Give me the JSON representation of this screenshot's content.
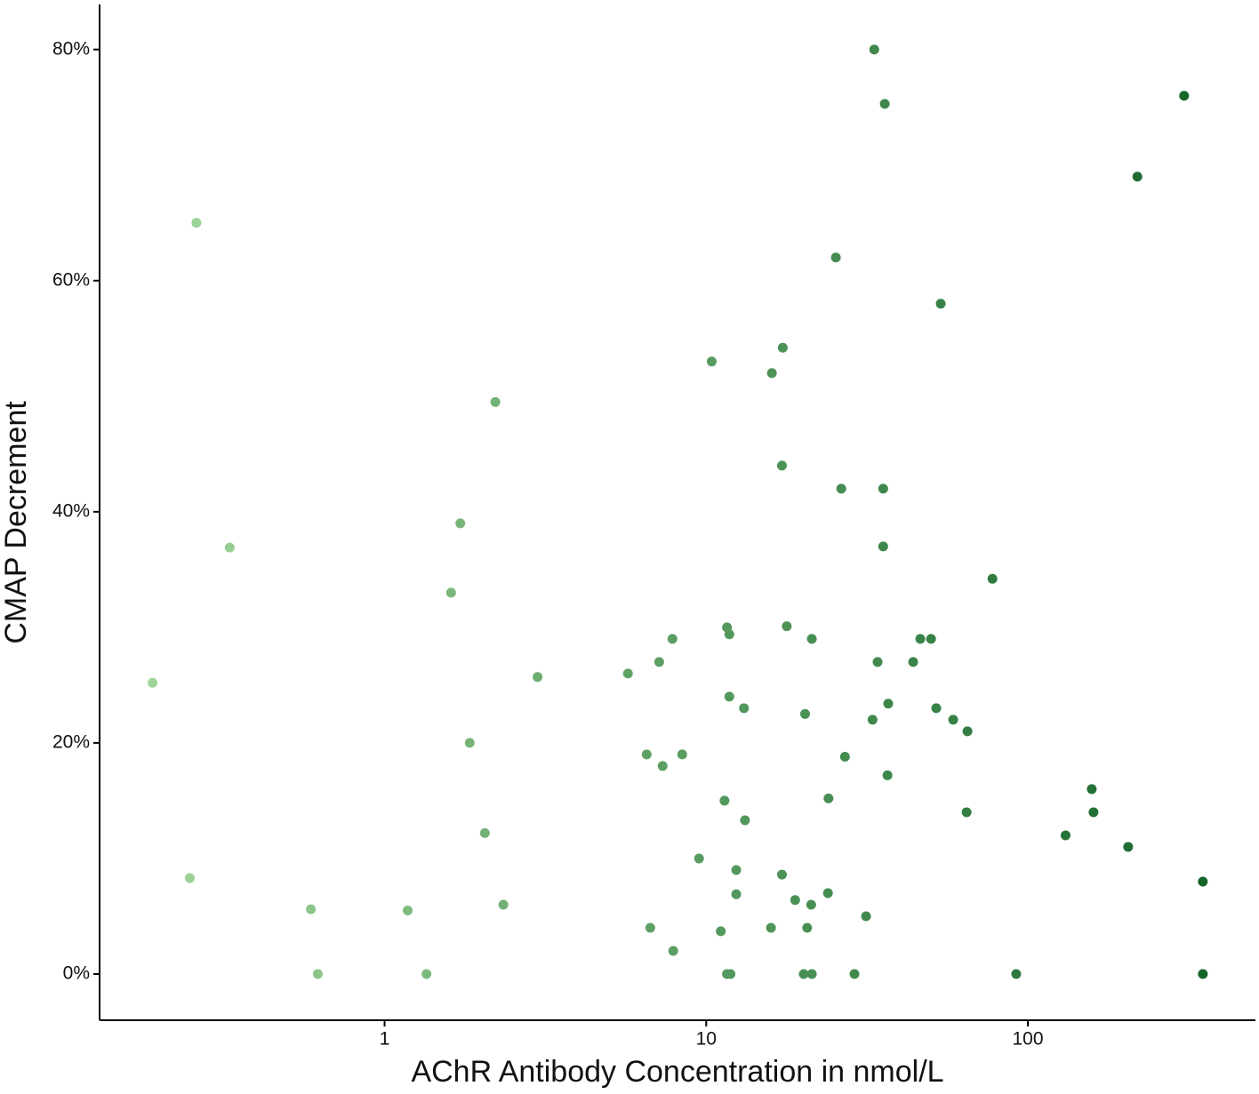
{
  "chart_data": {
    "type": "scatter",
    "x_label": "AChR Antibody Concentration in nmol/L",
    "y_label": "CMAP Decrement",
    "x_log": true,
    "grid": false,
    "color_range": [
      "#a8dca0",
      "#0d5f24"
    ],
    "xlim": [
      0.13,
      510
    ],
    "ylim": [
      -4,
      83.9
    ],
    "xticks": [
      1,
      10,
      100
    ],
    "yticks": [
      {
        "value": 0,
        "label": "0%"
      },
      {
        "value": 20,
        "label": "20%"
      },
      {
        "value": 40,
        "label": "40%"
      },
      {
        "value": 60,
        "label": "60%"
      },
      {
        "value": 80,
        "label": "80%"
      }
    ],
    "x": [
      33.3,
      35.9,
      306,
      219,
      0.26,
      25.3,
      53.6,
      17.3,
      10.4,
      16.0,
      2.21,
      17.2,
      26.3,
      35.5,
      1.72,
      0.33,
      35.5,
      77.6,
      1.61,
      11.6,
      11.8,
      17.8,
      7.85,
      21.3,
      46.3,
      50.0,
      7.14,
      34.1,
      44.0,
      5.71,
      2.99,
      0.19,
      11.8,
      13.1,
      20.3,
      36.8,
      51.9,
      32.9,
      58.6,
      64.9,
      1.84,
      6.53,
      8.42,
      7.32,
      27.0,
      36.6,
      158,
      11.4,
      24.0,
      160,
      13.2,
      64.5,
      2.05,
      131,
      205,
      9.5,
      12.4,
      17.2,
      0.248,
      350,
      12.4,
      23.9,
      18.9,
      21.2,
      2.34,
      0.59,
      1.18,
      31.4,
      6.7,
      15.9,
      20.6,
      11.1,
      7.9,
      0.62,
      1.35,
      11.6,
      11.9,
      20.1,
      21.3,
      28.9,
      92.0,
      350
    ],
    "y": [
      80,
      75.3,
      76,
      69,
      65,
      62,
      58,
      54.2,
      53,
      52,
      49.5,
      44,
      42,
      42,
      39,
      36.9,
      37,
      34.2,
      33,
      30,
      29.4,
      30.1,
      29,
      29,
      29,
      29,
      27,
      27,
      27,
      26,
      25.7,
      25.2,
      24,
      23,
      22.5,
      23.4,
      23,
      22,
      22,
      21,
      20,
      19,
      19,
      18,
      18.8,
      17.2,
      16,
      15,
      15.2,
      14,
      13.3,
      14,
      12.2,
      12,
      11,
      10,
      9,
      8.6,
      8.3,
      8,
      6.9,
      7,
      6.4,
      6,
      6,
      5.6,
      5.5,
      5,
      4,
      4,
      4,
      3.7,
      2,
      0,
      0,
      0,
      0,
      0,
      0,
      0,
      0,
      0
    ]
  }
}
